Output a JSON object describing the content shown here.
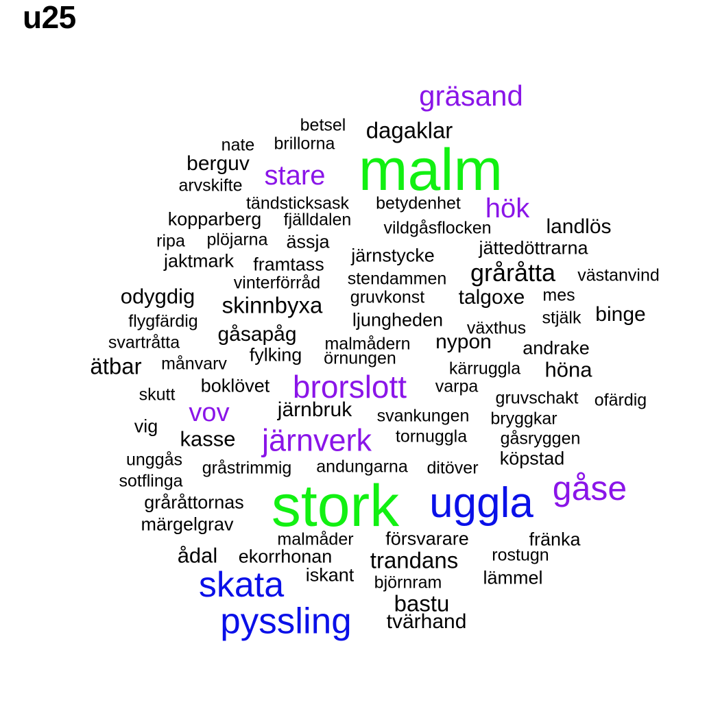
{
  "title": "u25",
  "colors": {
    "black": "#000000",
    "purple": "#8a15e8",
    "green": "#12f012",
    "blue": "#0a10e8"
  },
  "words": [
    {
      "text": "gräsand",
      "color": "purple"
    },
    {
      "text": "betsel",
      "color": "black"
    },
    {
      "text": "dagaklar",
      "color": "black"
    },
    {
      "text": "nate",
      "color": "black"
    },
    {
      "text": "brillorna",
      "color": "black"
    },
    {
      "text": "malm",
      "color": "green"
    },
    {
      "text": "berguv",
      "color": "black"
    },
    {
      "text": "stare",
      "color": "purple"
    },
    {
      "text": "arvskifte",
      "color": "black"
    },
    {
      "text": "tändsticksask",
      "color": "black"
    },
    {
      "text": "betydenhet",
      "color": "black"
    },
    {
      "text": "hök",
      "color": "purple"
    },
    {
      "text": "kopparberg",
      "color": "black"
    },
    {
      "text": "fjälldalen",
      "color": "black"
    },
    {
      "text": "vildgåsflocken",
      "color": "black"
    },
    {
      "text": "landlös",
      "color": "black"
    },
    {
      "text": "ripa",
      "color": "black"
    },
    {
      "text": "plöjarna",
      "color": "black"
    },
    {
      "text": "ässja",
      "color": "black"
    },
    {
      "text": "jättedöttrarna",
      "color": "black"
    },
    {
      "text": "jaktmark",
      "color": "black"
    },
    {
      "text": "järnstycke",
      "color": "black"
    },
    {
      "text": "framtass",
      "color": "black"
    },
    {
      "text": "gråråtta",
      "color": "black"
    },
    {
      "text": "västanvind",
      "color": "black"
    },
    {
      "text": "vinterförråd",
      "color": "black"
    },
    {
      "text": "stendammen",
      "color": "black"
    },
    {
      "text": "odygdig",
      "color": "black"
    },
    {
      "text": "gruvkonst",
      "color": "black"
    },
    {
      "text": "talgoxe",
      "color": "black"
    },
    {
      "text": "mes",
      "color": "black"
    },
    {
      "text": "skinnbyxa",
      "color": "black"
    },
    {
      "text": "flygfärdig",
      "color": "black"
    },
    {
      "text": "ljungheden",
      "color": "black"
    },
    {
      "text": "stjälk",
      "color": "black"
    },
    {
      "text": "binge",
      "color": "black"
    },
    {
      "text": "växthus",
      "color": "black"
    },
    {
      "text": "gåsapåg",
      "color": "black"
    },
    {
      "text": "svartråtta",
      "color": "black"
    },
    {
      "text": "malmådern",
      "color": "black"
    },
    {
      "text": "nypon",
      "color": "black"
    },
    {
      "text": "andrake",
      "color": "black"
    },
    {
      "text": "fylking",
      "color": "black"
    },
    {
      "text": "örnungen",
      "color": "black"
    },
    {
      "text": "ätbar",
      "color": "black"
    },
    {
      "text": "månvarv",
      "color": "black"
    },
    {
      "text": "kärruggla",
      "color": "black"
    },
    {
      "text": "höna",
      "color": "black"
    },
    {
      "text": "brorslott",
      "color": "purple"
    },
    {
      "text": "boklövet",
      "color": "black"
    },
    {
      "text": "varpa",
      "color": "black"
    },
    {
      "text": "skutt",
      "color": "black"
    },
    {
      "text": "gruvschakt",
      "color": "black"
    },
    {
      "text": "ofärdig",
      "color": "black"
    },
    {
      "text": "vov",
      "color": "purple"
    },
    {
      "text": "järnbruk",
      "color": "black"
    },
    {
      "text": "svankungen",
      "color": "black"
    },
    {
      "text": "bryggkar",
      "color": "black"
    },
    {
      "text": "vig",
      "color": "black"
    },
    {
      "text": "kasse",
      "color": "black"
    },
    {
      "text": "järnverk",
      "color": "purple"
    },
    {
      "text": "tornuggla",
      "color": "black"
    },
    {
      "text": "gåsryggen",
      "color": "black"
    },
    {
      "text": "unggås",
      "color": "black"
    },
    {
      "text": "köpstad",
      "color": "black"
    },
    {
      "text": "gråstrimmig",
      "color": "black"
    },
    {
      "text": "andungarna",
      "color": "black"
    },
    {
      "text": "ditöver",
      "color": "black"
    },
    {
      "text": "sotflinga",
      "color": "black"
    },
    {
      "text": "gåse",
      "color": "purple"
    },
    {
      "text": "stork",
      "color": "green"
    },
    {
      "text": "uggla",
      "color": "blue"
    },
    {
      "text": "gråråttornas",
      "color": "black"
    },
    {
      "text": "märgelgrav",
      "color": "black"
    },
    {
      "text": "malmåder",
      "color": "black"
    },
    {
      "text": "försvarare",
      "color": "black"
    },
    {
      "text": "fränka",
      "color": "black"
    },
    {
      "text": "ådal",
      "color": "black"
    },
    {
      "text": "ekorrhonan",
      "color": "black"
    },
    {
      "text": "trandans",
      "color": "black"
    },
    {
      "text": "rostugn",
      "color": "black"
    },
    {
      "text": "skata",
      "color": "blue"
    },
    {
      "text": "iskant",
      "color": "black"
    },
    {
      "text": "lämmel",
      "color": "black"
    },
    {
      "text": "björnram",
      "color": "black"
    },
    {
      "text": "bastu",
      "color": "black"
    },
    {
      "text": "pyssling",
      "color": "blue"
    },
    {
      "text": "tvärhand",
      "color": "black"
    }
  ]
}
